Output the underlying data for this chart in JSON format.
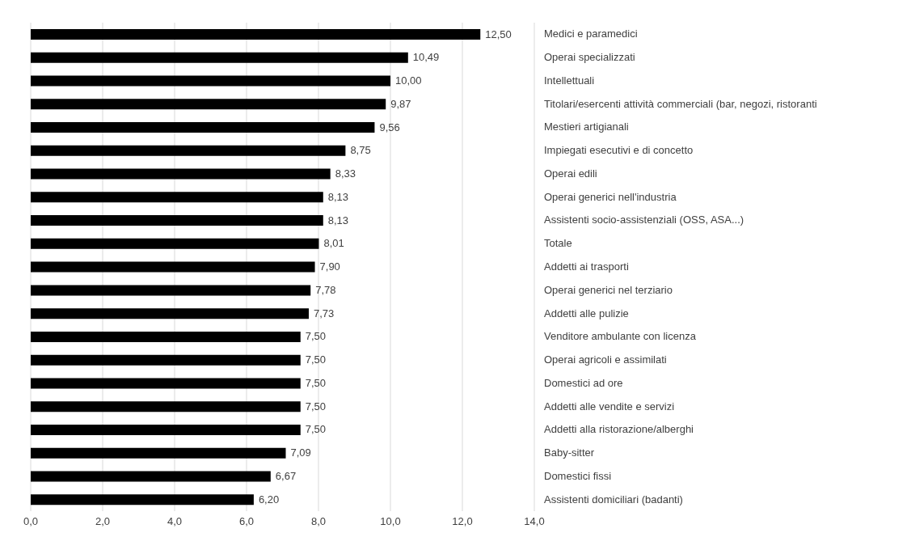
{
  "chart_data": {
    "type": "bar",
    "orientation": "horizontal",
    "categories": [
      "Medici e paramedici",
      "Operai specializzati",
      "Intellettuali",
      "Titolari/esercenti attività commerciali (bar, negozi, ristoranti",
      "Mestieri artigianali",
      "Impiegati esecutivi e di concetto",
      "Operai edili",
      "Operai generici nell'industria",
      "Assistenti socio-assistenziali (OSS, ASA...)",
      "Totale",
      "Addetti ai trasporti",
      "Operai generici nel terziario",
      "Addetti alle pulizie",
      "Venditore ambulante con licenza",
      "Operai agricoli e assimilati",
      "Domestici ad ore",
      "Addetti alle vendite e servizi",
      "Addetti alla ristorazione/alberghi",
      "Baby-sitter",
      "Domestici fissi",
      "Assistenti domiciliari (badanti)"
    ],
    "values": [
      12.5,
      10.49,
      10.0,
      9.87,
      9.56,
      8.75,
      8.33,
      8.13,
      8.13,
      8.01,
      7.9,
      7.78,
      7.73,
      7.5,
      7.5,
      7.5,
      7.5,
      7.5,
      7.09,
      6.67,
      6.2
    ],
    "value_labels": [
      "12,50",
      "10,49",
      "10,00",
      "9,87",
      "9,56",
      "8,75",
      "8,33",
      "8,13",
      "8,13",
      "8,01",
      "7,90",
      "7,78",
      "7,73",
      "7,50",
      "7,50",
      "7,50",
      "7,50",
      "7,50",
      "7,09",
      "6,67",
      "6,20"
    ],
    "color": "#000000",
    "xlim": [
      0,
      14
    ],
    "xticks": [
      {
        "value": 0,
        "label": "0,0"
      },
      {
        "value": 2,
        "label": "2,0"
      },
      {
        "value": 4,
        "label": "4,0"
      },
      {
        "value": 6,
        "label": "6,0"
      },
      {
        "value": 8,
        "label": "8,0"
      },
      {
        "value": 10,
        "label": "10,0"
      },
      {
        "value": 12,
        "label": "12,0"
      },
      {
        "value": 14,
        "label": "14,0"
      }
    ],
    "grid": "x"
  }
}
